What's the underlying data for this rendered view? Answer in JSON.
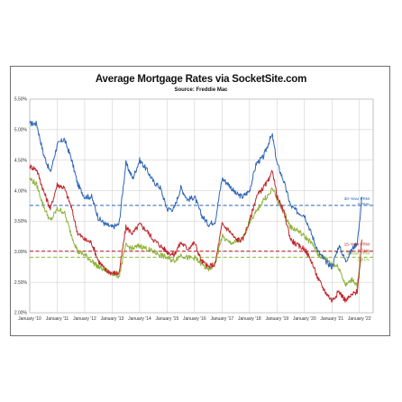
{
  "title": "Average Mortgage Rates via SocketSite.com",
  "subtitle": "Source: Freddie Mac",
  "colors": {
    "frm30": "#2e64b6",
    "frm15": "#c0262c",
    "arm5": "#8db33a",
    "grid": "#c8c8c8"
  },
  "chart_data": {
    "type": "line",
    "title": "Average Mortgage Rates via SocketSite.com",
    "subtitle": "Source: Freddie Mac",
    "xlabel": "",
    "ylabel": "",
    "x_range": [
      "2010-01",
      "2022-01"
    ],
    "ylim": [
      2.0,
      5.5
    ],
    "y_ticks": [
      "2.00%",
      "2.50%",
      "3.00%",
      "3.50%",
      "4.00%",
      "4.50%",
      "5.00%",
      "5.50%"
    ],
    "x_ticks": [
      "January '10",
      "January '11",
      "January '12",
      "January '13",
      "January '14",
      "January '15",
      "January '16",
      "January '17",
      "January '18",
      "January '19",
      "January '20",
      "January '21",
      "January '22"
    ],
    "grid": true,
    "series": [
      {
        "name": "30-Year FRM",
        "current_label": "3.76%",
        "current_value": 3.76,
        "color": "#2e64b6",
        "points": [
          [
            "2010-01",
            5.1
          ],
          [
            "2010-04",
            5.1
          ],
          [
            "2010-07",
            4.6
          ],
          [
            "2010-10",
            4.3
          ],
          [
            "2011-01",
            4.75
          ],
          [
            "2011-04",
            4.85
          ],
          [
            "2011-07",
            4.55
          ],
          [
            "2011-10",
            4.1
          ],
          [
            "2012-01",
            3.9
          ],
          [
            "2012-04",
            3.9
          ],
          [
            "2012-07",
            3.55
          ],
          [
            "2012-10",
            3.45
          ],
          [
            "2013-01",
            3.4
          ],
          [
            "2013-04",
            3.45
          ],
          [
            "2013-07",
            4.45
          ],
          [
            "2013-10",
            4.2
          ],
          [
            "2014-01",
            4.5
          ],
          [
            "2014-04",
            4.35
          ],
          [
            "2014-07",
            4.15
          ],
          [
            "2014-10",
            4.05
          ],
          [
            "2015-01",
            3.7
          ],
          [
            "2015-04",
            3.7
          ],
          [
            "2015-07",
            4.05
          ],
          [
            "2015-10",
            3.85
          ],
          [
            "2016-01",
            3.9
          ],
          [
            "2016-04",
            3.6
          ],
          [
            "2016-07",
            3.45
          ],
          [
            "2016-10",
            3.5
          ],
          [
            "2017-01",
            4.2
          ],
          [
            "2017-04",
            4.1
          ],
          [
            "2017-07",
            3.95
          ],
          [
            "2017-10",
            3.9
          ],
          [
            "2018-01",
            4.0
          ],
          [
            "2018-04",
            4.45
          ],
          [
            "2018-07",
            4.55
          ],
          [
            "2018-10",
            4.85
          ],
          [
            "2018-11",
            4.9
          ],
          [
            "2019-01",
            4.45
          ],
          [
            "2019-04",
            4.15
          ],
          [
            "2019-07",
            3.75
          ],
          [
            "2019-10",
            3.65
          ],
          [
            "2020-01",
            3.6
          ],
          [
            "2020-04",
            3.3
          ],
          [
            "2020-07",
            3.0
          ],
          [
            "2020-10",
            2.85
          ],
          [
            "2021-01",
            2.75
          ],
          [
            "2021-04",
            3.1
          ],
          [
            "2021-07",
            2.85
          ],
          [
            "2021-10",
            3.05
          ],
          [
            "2021-12",
            3.15
          ],
          [
            "2022-01",
            3.45
          ],
          [
            "2022-02",
            3.9
          ]
        ]
      },
      {
        "name": "15-Year FRM",
        "current_label": "3.01%",
        "current_value": 3.01,
        "color": "#c0262c",
        "points": [
          [
            "2010-01",
            4.4
          ],
          [
            "2010-04",
            4.35
          ],
          [
            "2010-07",
            4.0
          ],
          [
            "2010-10",
            3.7
          ],
          [
            "2011-01",
            4.1
          ],
          [
            "2011-04",
            4.05
          ],
          [
            "2011-07",
            3.75
          ],
          [
            "2011-10",
            3.3
          ],
          [
            "2012-01",
            3.2
          ],
          [
            "2012-04",
            3.15
          ],
          [
            "2012-07",
            2.85
          ],
          [
            "2012-10",
            2.7
          ],
          [
            "2013-01",
            2.65
          ],
          [
            "2013-04",
            2.65
          ],
          [
            "2013-07",
            3.4
          ],
          [
            "2013-10",
            3.3
          ],
          [
            "2014-01",
            3.45
          ],
          [
            "2014-04",
            3.35
          ],
          [
            "2014-07",
            3.2
          ],
          [
            "2014-10",
            3.1
          ],
          [
            "2015-01",
            3.0
          ],
          [
            "2015-04",
            2.95
          ],
          [
            "2015-07",
            3.15
          ],
          [
            "2015-10",
            3.05
          ],
          [
            "2016-01",
            3.15
          ],
          [
            "2016-04",
            2.85
          ],
          [
            "2016-07",
            2.75
          ],
          [
            "2016-10",
            2.8
          ],
          [
            "2017-01",
            3.45
          ],
          [
            "2017-04",
            3.35
          ],
          [
            "2017-07",
            3.2
          ],
          [
            "2017-10",
            3.2
          ],
          [
            "2018-01",
            3.5
          ],
          [
            "2018-04",
            3.9
          ],
          [
            "2018-07",
            4.05
          ],
          [
            "2018-10",
            4.2
          ],
          [
            "2018-11",
            4.35
          ],
          [
            "2019-01",
            3.9
          ],
          [
            "2019-04",
            3.65
          ],
          [
            "2019-07",
            3.2
          ],
          [
            "2019-10",
            3.1
          ],
          [
            "2020-01",
            3.05
          ],
          [
            "2020-04",
            2.85
          ],
          [
            "2020-07",
            2.55
          ],
          [
            "2020-10",
            2.35
          ],
          [
            "2021-01",
            2.2
          ],
          [
            "2021-04",
            2.35
          ],
          [
            "2021-07",
            2.2
          ],
          [
            "2021-10",
            2.3
          ],
          [
            "2021-12",
            2.35
          ],
          [
            "2022-01",
            2.7
          ],
          [
            "2022-02",
            3.2
          ]
        ]
      },
      {
        "name": "5-Year ARM",
        "current_label": "2.91%",
        "current_value": 2.91,
        "color": "#8db33a",
        "points": [
          [
            "2010-01",
            4.2
          ],
          [
            "2010-04",
            4.1
          ],
          [
            "2010-07",
            3.75
          ],
          [
            "2010-10",
            3.5
          ],
          [
            "2011-01",
            3.7
          ],
          [
            "2011-04",
            3.65
          ],
          [
            "2011-07",
            3.3
          ],
          [
            "2011-10",
            3.0
          ],
          [
            "2012-01",
            2.95
          ],
          [
            "2012-04",
            2.85
          ],
          [
            "2012-07",
            2.75
          ],
          [
            "2012-10",
            2.7
          ],
          [
            "2013-01",
            2.65
          ],
          [
            "2013-04",
            2.6
          ],
          [
            "2013-07",
            3.1
          ],
          [
            "2013-10",
            3.05
          ],
          [
            "2014-01",
            3.1
          ],
          [
            "2014-04",
            3.05
          ],
          [
            "2014-07",
            3.0
          ],
          [
            "2014-10",
            2.95
          ],
          [
            "2015-01",
            2.9
          ],
          [
            "2015-04",
            2.85
          ],
          [
            "2015-07",
            2.95
          ],
          [
            "2015-10",
            2.9
          ],
          [
            "2016-01",
            2.9
          ],
          [
            "2016-04",
            2.8
          ],
          [
            "2016-07",
            2.7
          ],
          [
            "2016-10",
            2.8
          ],
          [
            "2017-01",
            3.25
          ],
          [
            "2017-04",
            3.15
          ],
          [
            "2017-07",
            3.15
          ],
          [
            "2017-10",
            3.2
          ],
          [
            "2018-01",
            3.5
          ],
          [
            "2018-04",
            3.65
          ],
          [
            "2018-07",
            3.85
          ],
          [
            "2018-10",
            3.95
          ],
          [
            "2018-11",
            4.05
          ],
          [
            "2019-01",
            3.85
          ],
          [
            "2019-04",
            3.65
          ],
          [
            "2019-07",
            3.4
          ],
          [
            "2019-10",
            3.35
          ],
          [
            "2020-01",
            3.25
          ],
          [
            "2020-04",
            3.15
          ],
          [
            "2020-07",
            2.95
          ],
          [
            "2020-10",
            2.9
          ],
          [
            "2021-01",
            2.8
          ],
          [
            "2021-04",
            2.75
          ],
          [
            "2021-07",
            2.45
          ],
          [
            "2021-10",
            2.55
          ],
          [
            "2021-12",
            2.45
          ],
          [
            "2022-01",
            2.7
          ],
          [
            "2022-02",
            2.9
          ]
        ]
      }
    ],
    "reference_lines": [
      {
        "series": "30-Year FRM",
        "value": 3.76,
        "style": "dashed"
      },
      {
        "series": "15-Year FRM",
        "value": 3.01,
        "style": "dashed"
      },
      {
        "series": "5-Year ARM",
        "value": 2.91,
        "style": "dashed"
      }
    ]
  }
}
